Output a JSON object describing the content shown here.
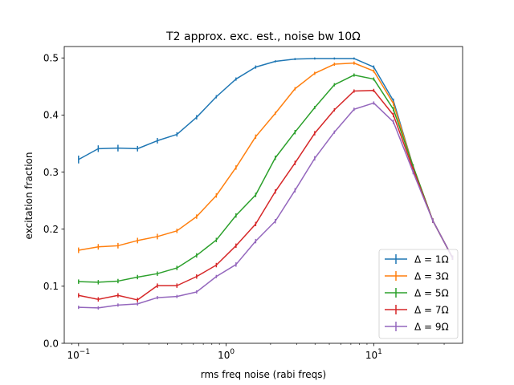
{
  "chart_data": {
    "type": "line",
    "title": "T2 approx. exc. est., noise bw 10Ω",
    "xlabel": "rms freq noise (rabi freqs)",
    "ylabel": "excitation fraction",
    "xscale": "log",
    "xlim": [
      0.08,
      40
    ],
    "ylim": [
      0.0,
      0.52
    ],
    "x_ticks": [
      {
        "value": 0.1,
        "base": "10",
        "exp": "−1"
      },
      {
        "value": 1,
        "base": "10",
        "exp": "0"
      },
      {
        "value": 10,
        "base": "10",
        "exp": "1"
      }
    ],
    "y_ticks": [
      {
        "value": 0.0,
        "label": "0.0"
      },
      {
        "value": 0.1,
        "label": "0.1"
      },
      {
        "value": 0.2,
        "label": "0.2"
      },
      {
        "value": 0.3,
        "label": "0.3"
      },
      {
        "value": 0.4,
        "label": "0.4"
      },
      {
        "value": 0.5,
        "label": "0.5"
      }
    ],
    "grid": false,
    "legend_position": "lower right",
    "x": [
      0.1,
      0.136,
      0.185,
      0.251,
      0.342,
      0.464,
      0.631,
      0.858,
      1.166,
      1.585,
      2.154,
      2.929,
      3.981,
      5.412,
      7.356,
      10.0,
      13.59,
      18.48,
      25.12,
      34.15
    ],
    "series": [
      {
        "name": "Δ = 1Ω",
        "color": "#1f77b4",
        "values": [
          0.322,
          0.341,
          0.342,
          0.341,
          0.355,
          0.366,
          0.396,
          0.432,
          0.463,
          0.484,
          0.494,
          0.498,
          0.499,
          0.499,
          0.499,
          0.484,
          0.425,
          0.31,
          0.215,
          0.15
        ],
        "errors": [
          0.006,
          0.005,
          0.005,
          0.004,
          0.004,
          0.003,
          0.003,
          0.002,
          0.002,
          0.002,
          0.001,
          0.001,
          0.001,
          0.001,
          0.001,
          0.002,
          0.003,
          0.003,
          0.003,
          0.003
        ]
      },
      {
        "name": "Δ = 3Ω",
        "color": "#ff7f0e",
        "values": [
          0.163,
          0.169,
          0.171,
          0.18,
          0.187,
          0.197,
          0.222,
          0.259,
          0.308,
          0.362,
          0.403,
          0.446,
          0.473,
          0.489,
          0.491,
          0.477,
          0.42,
          0.31,
          0.215,
          0.15
        ],
        "errors": [
          0.004,
          0.004,
          0.004,
          0.004,
          0.004,
          0.003,
          0.003,
          0.003,
          0.003,
          0.003,
          0.002,
          0.002,
          0.002,
          0.002,
          0.002,
          0.002,
          0.003,
          0.003,
          0.003,
          0.003
        ]
      },
      {
        "name": "Δ = 5Ω",
        "color": "#2ca02c",
        "values": [
          0.108,
          0.107,
          0.109,
          0.116,
          0.122,
          0.132,
          0.154,
          0.181,
          0.224,
          0.26,
          0.325,
          0.37,
          0.413,
          0.453,
          0.47,
          0.463,
          0.41,
          0.31,
          0.215,
          0.15
        ],
        "errors": [
          0.003,
          0.003,
          0.003,
          0.003,
          0.003,
          0.003,
          0.003,
          0.003,
          0.003,
          0.003,
          0.003,
          0.003,
          0.002,
          0.002,
          0.002,
          0.002,
          0.003,
          0.003,
          0.003,
          0.003
        ]
      },
      {
        "name": "Δ = 7Ω",
        "color": "#d62728",
        "values": [
          0.084,
          0.077,
          0.084,
          0.076,
          0.101,
          0.101,
          0.117,
          0.137,
          0.171,
          0.209,
          0.266,
          0.316,
          0.368,
          0.409,
          0.442,
          0.443,
          0.4,
          0.305,
          0.215,
          0.15
        ],
        "errors": [
          0.003,
          0.003,
          0.003,
          0.003,
          0.003,
          0.003,
          0.003,
          0.003,
          0.003,
          0.003,
          0.003,
          0.003,
          0.003,
          0.002,
          0.002,
          0.002,
          0.003,
          0.003,
          0.003,
          0.003
        ]
      },
      {
        "name": "Δ = 9Ω",
        "color": "#9467bd",
        "values": [
          0.063,
          0.062,
          0.067,
          0.069,
          0.08,
          0.082,
          0.09,
          0.117,
          0.138,
          0.179,
          0.214,
          0.268,
          0.324,
          0.37,
          0.41,
          0.421,
          0.388,
          0.3,
          0.215,
          0.15
        ],
        "errors": [
          0.002,
          0.002,
          0.002,
          0.002,
          0.002,
          0.002,
          0.002,
          0.002,
          0.003,
          0.003,
          0.003,
          0.003,
          0.003,
          0.002,
          0.002,
          0.002,
          0.003,
          0.003,
          0.003,
          0.003
        ]
      }
    ]
  }
}
